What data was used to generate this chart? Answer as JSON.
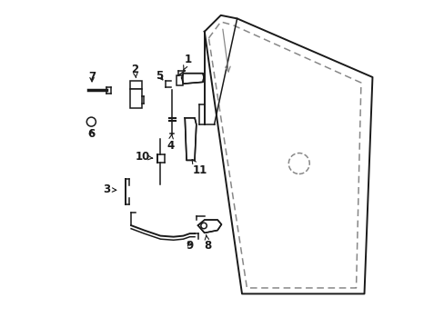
{
  "bg_color": "#ffffff",
  "line_color": "#1a1a1a",
  "dashed_color": "#888888",
  "figsize": [
    4.89,
    3.6
  ],
  "dpi": 100,
  "door_outer": {
    "x": [
      0.44,
      0.5,
      0.54,
      0.96,
      0.94,
      0.56,
      0.44
    ],
    "y": [
      0.93,
      0.97,
      0.97,
      0.78,
      0.1,
      0.1,
      0.93
    ]
  },
  "door_dashed": {
    "x": [
      0.455,
      0.505,
      0.545,
      0.925,
      0.905,
      0.565,
      0.455
    ],
    "y": [
      0.905,
      0.945,
      0.945,
      0.76,
      0.125,
      0.125,
      0.905
    ]
  },
  "window_outline": {
    "x": [
      0.455,
      0.505,
      0.545,
      0.455
    ],
    "y": [
      0.905,
      0.945,
      0.945,
      0.905
    ]
  },
  "lock_circle": [
    0.73,
    0.52,
    0.038
  ],
  "label_fontsize": 8.5
}
